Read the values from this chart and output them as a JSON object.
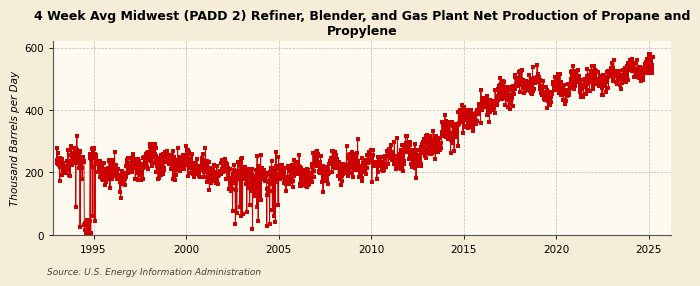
{
  "title": "4 Week Avg Midwest (PADD 2) Refiner, Blender, and Gas Plant Net Production of Propane and\nPropylene",
  "ylabel": "Thousand Barrels per Day",
  "source": "Source: U.S. Energy Information Administration",
  "fig_bg_color": "#F5EDD8",
  "plot_bg_color": "#FEFAF0",
  "line_color": "#CC0000",
  "grid_color": "#AAAAAA",
  "ylim": [
    0,
    620
  ],
  "yticks": [
    0,
    200,
    400,
    600
  ],
  "xlim_start": 1992.8,
  "xlim_end": 2026.2,
  "xticks": [
    1995,
    2000,
    2005,
    2010,
    2015,
    2020,
    2025
  ],
  "marker_size": 2.2,
  "title_fontsize": 9.0,
  "ylabel_fontsize": 7.5,
  "tick_fontsize": 7.5,
  "source_fontsize": 6.5
}
